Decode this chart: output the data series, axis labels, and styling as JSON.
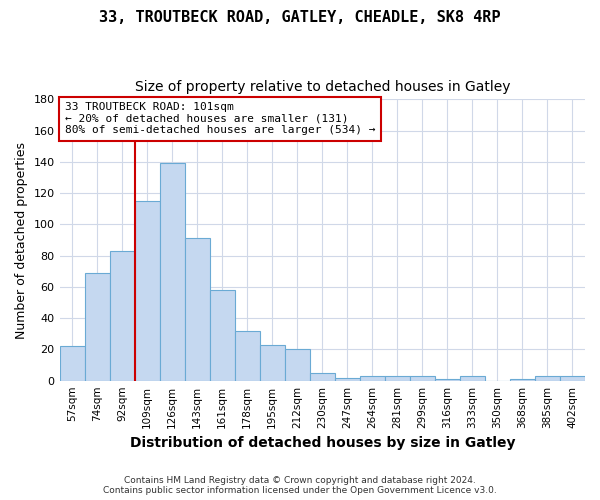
{
  "title": "33, TROUTBECK ROAD, GATLEY, CHEADLE, SK8 4RP",
  "subtitle": "Size of property relative to detached houses in Gatley",
  "xlabel": "Distribution of detached houses by size in Gatley",
  "ylabel": "Number of detached properties",
  "bar_labels": [
    "57sqm",
    "74sqm",
    "92sqm",
    "109sqm",
    "126sqm",
    "143sqm",
    "161sqm",
    "178sqm",
    "195sqm",
    "212sqm",
    "230sqm",
    "247sqm",
    "264sqm",
    "281sqm",
    "299sqm",
    "316sqm",
    "333sqm",
    "350sqm",
    "368sqm",
    "385sqm",
    "402sqm"
  ],
  "bar_values": [
    22,
    69,
    83,
    115,
    139,
    91,
    58,
    32,
    23,
    20,
    5,
    2,
    3,
    3,
    3,
    1,
    3,
    0,
    1,
    3,
    3
  ],
  "bar_color": "#c5d8f0",
  "bar_edge_color": "#6aaad4",
  "bg_color": "#ffffff",
  "plot_bg_color": "#ffffff",
  "grid_color": "#d0d8e8",
  "vline_x_index": 2.5,
  "vline_color": "#cc0000",
  "annotation_line1": "33 TROUTBECK ROAD: 101sqm",
  "annotation_line2": "← 20% of detached houses are smaller (131)",
  "annotation_line3": "80% of semi-detached houses are larger (534) →",
  "annotation_box_edgecolor": "#cc0000",
  "footer_line1": "Contains HM Land Registry data © Crown copyright and database right 2024.",
  "footer_line2": "Contains public sector information licensed under the Open Government Licence v3.0.",
  "ylim": [
    0,
    180
  ],
  "yticks": [
    0,
    20,
    40,
    60,
    80,
    100,
    120,
    140,
    160,
    180
  ],
  "title_fontsize": 11,
  "subtitle_fontsize": 10
}
